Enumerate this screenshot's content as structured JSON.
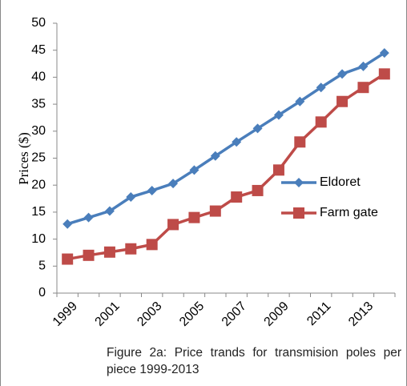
{
  "chart_data": {
    "type": "line",
    "categories": [
      "1999",
      null,
      "2001",
      null,
      "2003",
      null,
      "2005",
      null,
      "2007",
      null,
      "2009",
      null,
      "2011",
      null,
      "2013",
      null
    ],
    "series": [
      {
        "name": "Eldoret",
        "color": "#4a7ebb",
        "marker": "diamond",
        "values": [
          12.8,
          14,
          15.2,
          17.8,
          19,
          20.3,
          22.8,
          25.4,
          28,
          30.5,
          33,
          35.5,
          38.1,
          40.6,
          42,
          44.5
        ]
      },
      {
        "name": "Farm gate",
        "color": "#be4b48",
        "marker": "square",
        "values": [
          6.3,
          7,
          7.6,
          8.2,
          9,
          12.7,
          14,
          15.2,
          17.8,
          19,
          22.8,
          28,
          31.7,
          35.5,
          38.1,
          40.6
        ]
      }
    ],
    "y_label": "Prices ($)",
    "ylim": [
      0,
      50
    ],
    "yticks": [
      0,
      5,
      10,
      15,
      20,
      25,
      30,
      35,
      40,
      45,
      50
    ],
    "grid": false,
    "legend": "right",
    "caption": "Figure 2a: Price trands for transmision poles per piece 1999-2013"
  }
}
